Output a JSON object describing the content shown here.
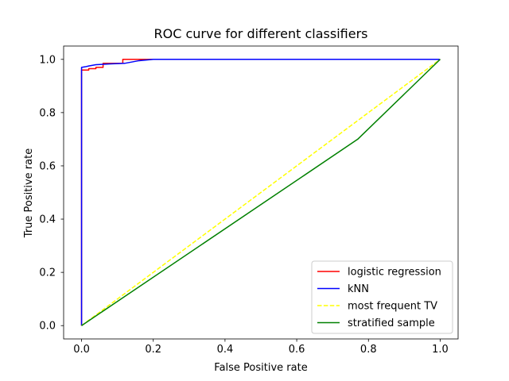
{
  "chart_data": {
    "type": "line",
    "title": "ROC curve for different classifiers",
    "xlabel": "False Positive rate",
    "ylabel": "True Positive rate",
    "xlim": [
      -0.05,
      1.05
    ],
    "ylim": [
      -0.05,
      1.05
    ],
    "xticks": [
      0.0,
      0.2,
      0.4,
      0.6,
      0.8,
      1.0
    ],
    "yticks": [
      0.0,
      0.2,
      0.4,
      0.6,
      0.8,
      1.0
    ],
    "xtick_labels": [
      "0.0",
      "0.2",
      "0.4",
      "0.6",
      "0.8",
      "1.0"
    ],
    "ytick_labels": [
      "0.0",
      "0.2",
      "0.4",
      "0.6",
      "0.8",
      "1.0"
    ],
    "grid": false,
    "legend_position": "lower-right",
    "series": [
      {
        "name": "logistic regression",
        "color": "#ff0000",
        "style": "solid",
        "x": [
          0.0,
          0.0,
          0.0,
          0.02,
          0.02,
          0.04,
          0.04,
          0.06,
          0.06,
          0.115,
          0.115,
          0.2,
          1.0
        ],
        "y": [
          0.0,
          0.96,
          0.96,
          0.96,
          0.965,
          0.965,
          0.97,
          0.97,
          0.985,
          0.985,
          1.0,
          1.0,
          1.0
        ]
      },
      {
        "name": "kNN",
        "color": "#0000ff",
        "style": "solid",
        "x": [
          0.0,
          0.0,
          0.01,
          0.02,
          0.04,
          0.08,
          0.12,
          0.16,
          0.2,
          1.0
        ],
        "y": [
          0.0,
          0.97,
          0.972,
          0.975,
          0.98,
          0.983,
          0.985,
          0.995,
          1.0,
          1.0
        ]
      },
      {
        "name": "most frequent TV",
        "color": "#ffff00",
        "style": "dashed",
        "x": [
          0.0,
          1.0
        ],
        "y": [
          0.0,
          1.0
        ]
      },
      {
        "name": "stratified sample",
        "color": "#008000",
        "style": "solid",
        "x": [
          0.0,
          0.77,
          1.0
        ],
        "y": [
          0.0,
          0.7,
          1.0
        ]
      }
    ]
  }
}
